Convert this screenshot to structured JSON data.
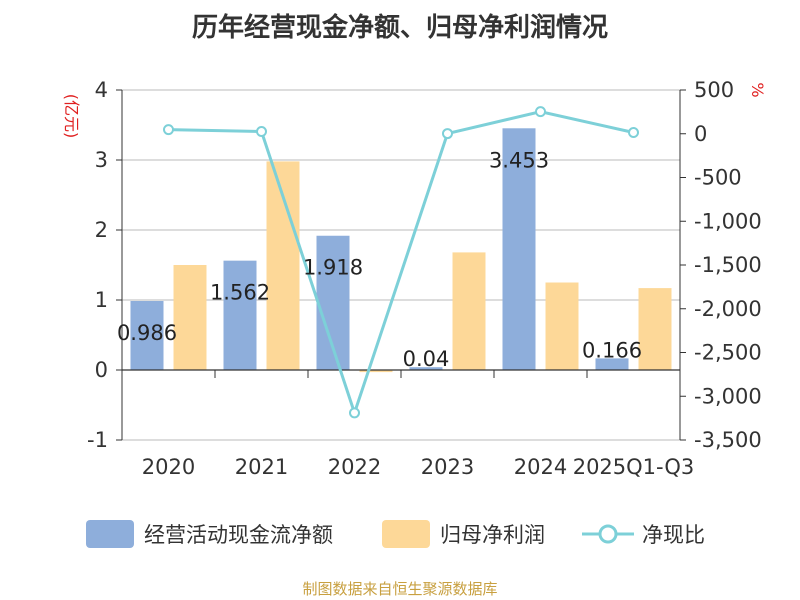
{
  "chart_data": {
    "type": "bar+line",
    "title": "历年经营现金净额、归母净利润情况",
    "categories": [
      "2020",
      "2021",
      "2022",
      "2023",
      "2024",
      "2025Q1-Q3"
    ],
    "series": [
      {
        "name": "经营活动现金流净额",
        "type": "bar",
        "axis": "left",
        "values": [
          0.986,
          1.562,
          1.918,
          0.04,
          3.453,
          0.166
        ],
        "data_labels": [
          "0.986",
          "1.562",
          "1.918",
          "0.04",
          "3.453",
          "0.166"
        ],
        "color": "#8eaedb"
      },
      {
        "name": "归母净利润",
        "type": "bar",
        "axis": "left",
        "values": [
          1.5,
          2.98,
          -0.03,
          1.68,
          1.25,
          1.17
        ],
        "color": "#fdd898"
      },
      {
        "name": "净现比",
        "type": "line",
        "axis": "right",
        "values": [
          47,
          26,
          -3190,
          2,
          253,
          14
        ],
        "color": "#7dd0d8"
      }
    ],
    "left_axis": {
      "unit": "(亿元)",
      "ylim": [
        -1,
        4
      ],
      "ticks": [
        "-1",
        "0",
        "1",
        "2",
        "3",
        "4"
      ]
    },
    "right_axis": {
      "unit": "%",
      "ylim": [
        -3500,
        500
      ],
      "ticks": [
        "500",
        "0",
        "-500",
        "-1,000",
        "-1,500",
        "-2,000",
        "-2,500",
        "-3,000",
        "-3,500"
      ]
    },
    "legend": {
      "position": "bottom",
      "items": [
        "经营活动现金流净额",
        "归母净利润",
        "净现比"
      ]
    },
    "source": "制图数据来自恒生聚源数据库",
    "colors": {
      "unit": "#e02020",
      "source": "#c8a040",
      "axis": "#333333",
      "grid": "#bbbbbb"
    }
  }
}
